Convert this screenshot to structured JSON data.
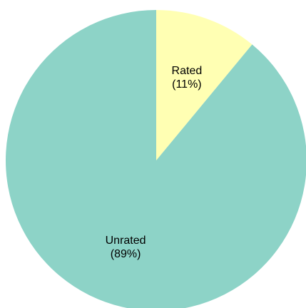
{
  "chart_data": {
    "type": "pie",
    "title": "",
    "start_angle": "12 o'clock",
    "direction": "clockwise",
    "slices": [
      {
        "label": "Rated",
        "pct_label": "(11%)",
        "value": 11,
        "color": "#FFFFB3"
      },
      {
        "label": "Unrated",
        "pct_label": "(89%)",
        "value": 89,
        "color": "#8DD3C7"
      }
    ],
    "legend": "none"
  }
}
